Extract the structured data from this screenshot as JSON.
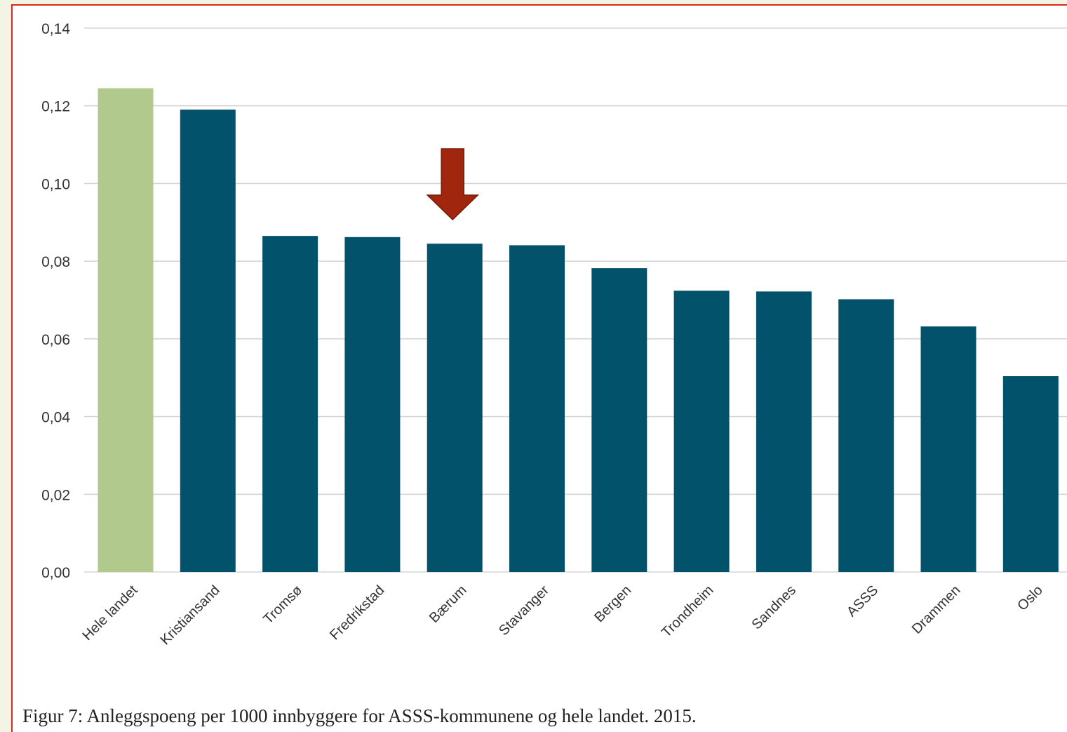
{
  "chart_data": {
    "type": "bar",
    "categories": [
      "Hele landet",
      "Kristiansand",
      "Tromsø",
      "Fredrikstad",
      "Bærum",
      "Stavanger",
      "Bergen",
      "Trondheim",
      "Sandnes",
      "ASSS",
      "Drammen",
      "Oslo"
    ],
    "values": [
      0.1245,
      0.119,
      0.0865,
      0.0862,
      0.0845,
      0.0841,
      0.0782,
      0.0724,
      0.0722,
      0.0702,
      0.0632,
      0.0504
    ],
    "ylim": [
      0,
      0.14
    ],
    "yticks": [
      "0,00",
      "0,02",
      "0,04",
      "0,06",
      "0,08",
      "0,10",
      "0,12",
      "0,14"
    ],
    "grid": true,
    "colors": {
      "highlight_bar": "#b1c98c",
      "bar": "#02526b",
      "arrow": "#a0270e",
      "grid": "#d6d6d6",
      "frame_border": "#d9281d"
    },
    "highlight_category": "Hele landet",
    "arrow_marks": "Bærum"
  },
  "caption": "Figur 7: Anleggspoeng per 1000 innbyggere for ASSS-kommunene og hele landet. 2015."
}
